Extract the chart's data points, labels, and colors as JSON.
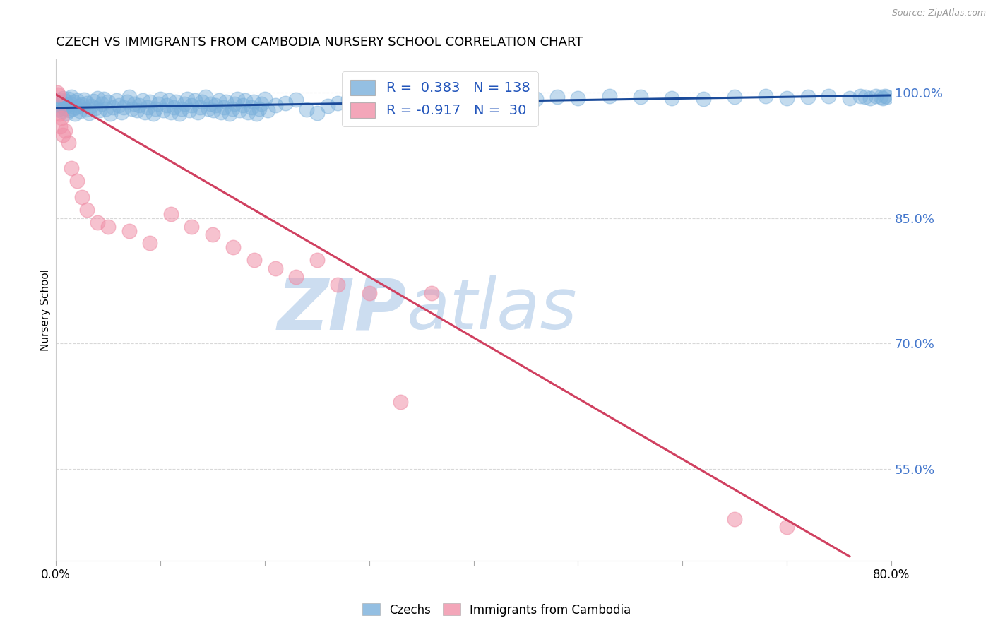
{
  "title": "CZECH VS IMMIGRANTS FROM CAMBODIA NURSERY SCHOOL CORRELATION CHART",
  "source": "Source: ZipAtlas.com",
  "ylabel": "Nursery School",
  "ytick_labels": [
    "100.0%",
    "85.0%",
    "70.0%",
    "55.0%"
  ],
  "ytick_values": [
    1.0,
    0.85,
    0.7,
    0.55
  ],
  "xlim": [
    0.0,
    0.8
  ],
  "ylim": [
    0.44,
    1.04
  ],
  "blue_R": 0.383,
  "blue_N": 138,
  "pink_R": -0.917,
  "pink_N": 30,
  "blue_color": "#7ab0db",
  "pink_color": "#f090a8",
  "blue_line_color": "#1a4a99",
  "pink_line_color": "#d04060",
  "legend_label_blue": "Czechs",
  "legend_label_pink": "Immigrants from Cambodia",
  "watermark_zip": "ZIP",
  "watermark_atlas": "atlas",
  "watermark_color": "#ccddf0",
  "background_color": "#ffffff",
  "grid_color": "#d8d8d8",
  "blue_scatter_x": [
    0.002,
    0.003,
    0.004,
    0.005,
    0.006,
    0.007,
    0.008,
    0.009,
    0.01,
    0.011,
    0.012,
    0.013,
    0.014,
    0.015,
    0.016,
    0.017,
    0.018,
    0.019,
    0.02,
    0.022,
    0.023,
    0.025,
    0.027,
    0.028,
    0.03,
    0.032,
    0.034,
    0.036,
    0.038,
    0.04,
    0.042,
    0.044,
    0.046,
    0.048,
    0.05,
    0.052,
    0.055,
    0.058,
    0.06,
    0.063,
    0.065,
    0.068,
    0.07,
    0.073,
    0.075,
    0.078,
    0.08,
    0.083,
    0.085,
    0.088,
    0.09,
    0.093,
    0.095,
    0.098,
    0.1,
    0.103,
    0.106,
    0.108,
    0.11,
    0.113,
    0.115,
    0.118,
    0.12,
    0.123,
    0.126,
    0.128,
    0.13,
    0.133,
    0.136,
    0.138,
    0.14,
    0.143,
    0.146,
    0.148,
    0.151,
    0.153,
    0.156,
    0.158,
    0.161,
    0.163,
    0.166,
    0.169,
    0.171,
    0.174,
    0.176,
    0.179,
    0.181,
    0.184,
    0.187,
    0.189,
    0.192,
    0.195,
    0.197,
    0.2,
    0.203,
    0.21,
    0.22,
    0.23,
    0.24,
    0.25,
    0.26,
    0.27,
    0.28,
    0.29,
    0.3,
    0.31,
    0.32,
    0.33,
    0.34,
    0.35,
    0.36,
    0.37,
    0.38,
    0.39,
    0.4,
    0.42,
    0.44,
    0.46,
    0.48,
    0.5,
    0.53,
    0.56,
    0.59,
    0.62,
    0.65,
    0.68,
    0.7,
    0.72,
    0.74,
    0.76,
    0.77,
    0.775,
    0.78,
    0.785,
    0.79,
    0.792,
    0.794,
    0.796
  ],
  "blue_scatter_y": [
    0.98,
    0.985,
    0.992,
    0.978,
    0.988,
    0.994,
    0.982,
    0.99,
    0.976,
    0.986,
    0.993,
    0.979,
    0.987,
    0.995,
    0.981,
    0.989,
    0.975,
    0.983,
    0.991,
    0.984,
    0.978,
    0.986,
    0.992,
    0.98,
    0.988,
    0.976,
    0.984,
    0.99,
    0.982,
    0.994,
    0.979,
    0.987,
    0.993,
    0.981,
    0.989,
    0.975,
    0.983,
    0.991,
    0.985,
    0.977,
    0.983,
    0.989,
    0.995,
    0.981,
    0.987,
    0.979,
    0.985,
    0.991,
    0.977,
    0.983,
    0.989,
    0.975,
    0.981,
    0.987,
    0.993,
    0.979,
    0.985,
    0.991,
    0.977,
    0.983,
    0.989,
    0.975,
    0.981,
    0.987,
    0.993,
    0.979,
    0.985,
    0.991,
    0.977,
    0.983,
    0.989,
    0.995,
    0.981,
    0.987,
    0.979,
    0.985,
    0.991,
    0.977,
    0.983,
    0.989,
    0.975,
    0.981,
    0.987,
    0.993,
    0.979,
    0.985,
    0.991,
    0.977,
    0.983,
    0.989,
    0.975,
    0.981,
    0.987,
    0.993,
    0.979,
    0.985,
    0.988,
    0.992,
    0.98,
    0.976,
    0.984,
    0.988,
    0.992,
    0.996,
    0.98,
    0.984,
    0.988,
    0.992,
    0.996,
    0.98,
    0.984,
    0.988,
    0.992,
    0.993,
    0.994,
    0.992,
    0.994,
    0.993,
    0.995,
    0.994,
    0.996,
    0.995,
    0.994,
    0.993,
    0.995,
    0.996,
    0.994,
    0.995,
    0.996,
    0.994,
    0.996,
    0.995,
    0.994,
    0.996,
    0.995,
    0.994,
    0.996,
    0.995
  ],
  "pink_scatter_x": [
    0.001,
    0.002,
    0.003,
    0.004,
    0.005,
    0.007,
    0.009,
    0.012,
    0.015,
    0.02,
    0.025,
    0.03,
    0.04,
    0.05,
    0.07,
    0.09,
    0.11,
    0.13,
    0.15,
    0.17,
    0.19,
    0.21,
    0.23,
    0.25,
    0.27,
    0.3,
    0.33,
    0.36,
    0.65,
    0.7
  ],
  "pink_scatter_y": [
    1.0,
    0.998,
    0.975,
    0.96,
    0.97,
    0.95,
    0.955,
    0.94,
    0.91,
    0.895,
    0.875,
    0.86,
    0.845,
    0.84,
    0.835,
    0.82,
    0.855,
    0.84,
    0.83,
    0.815,
    0.8,
    0.79,
    0.78,
    0.8,
    0.77,
    0.76,
    0.63,
    0.76,
    0.49,
    0.48
  ],
  "blue_line_x": [
    0.0,
    0.8
  ],
  "blue_line_y": [
    0.982,
    0.997
  ],
  "pink_line_x": [
    0.0,
    0.76
  ],
  "pink_line_y": [
    0.998,
    0.445
  ]
}
